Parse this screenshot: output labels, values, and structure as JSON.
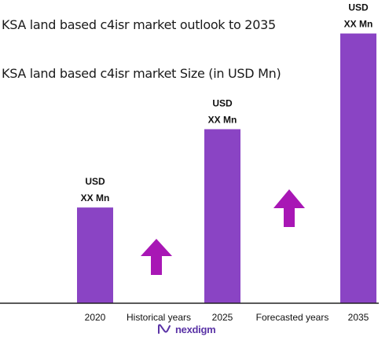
{
  "page": {
    "title": "KSA land based c4isr market outlook to 2035",
    "subtitle": "KSA land based c4isr market Size (in USD Mn)"
  },
  "chart_data": {
    "type": "bar",
    "categories": [
      "2020",
      "2025",
      "2035"
    ],
    "values": [
      22,
      40,
      62
    ],
    "value_labels": [
      [
        "USD",
        "XX Mn"
      ],
      [
        "USD",
        "XX Mn"
      ],
      [
        "USD",
        "XX Mn"
      ]
    ],
    "ylim": [
      0,
      65
    ],
    "grid": false,
    "period_labels": [
      "Historical years",
      "Forecasted years"
    ],
    "bar_color": "#8a44c4",
    "arrow_color": "#a817b5"
  },
  "brand": {
    "logo_text": "nexdigm",
    "logo_icon": "nexdigm-logo-icon",
    "logo_color": "#5a33a6"
  }
}
